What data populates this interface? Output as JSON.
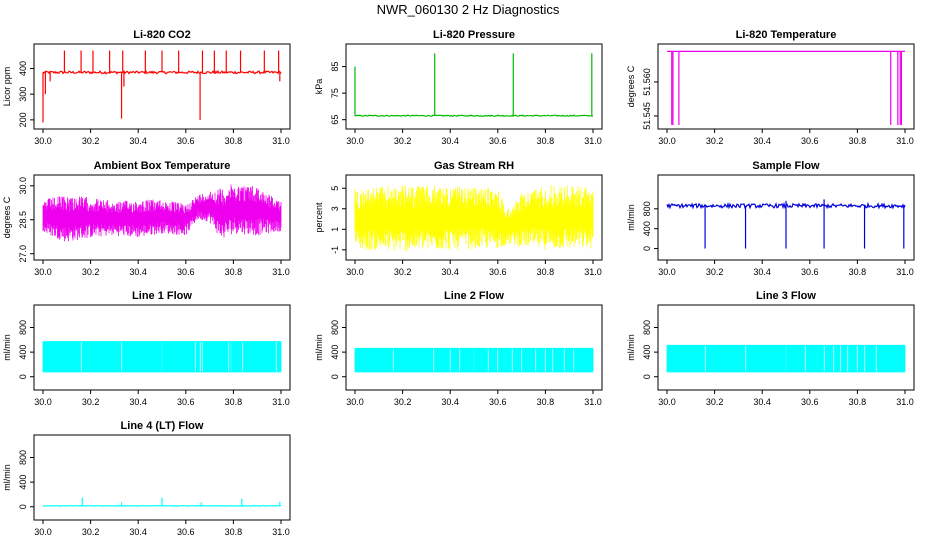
{
  "title": "NWR_060130  2 Hz Diagnostics",
  "chart_data": [
    {
      "type": "line",
      "title": "Li-820 CO2",
      "ylabel": "Licor ppm",
      "color": "#ff0000",
      "xlim": [
        30.0,
        31.0
      ],
      "ylim": [
        180,
        480
      ],
      "xticks": [
        30.0,
        30.2,
        30.4,
        30.6,
        30.8,
        31.0
      ],
      "xtick_labels": [
        "30.0",
        "30.2",
        "30.4",
        "30.6",
        "30.8",
        "31.0"
      ],
      "yticks": [
        200,
        300,
        400
      ],
      "ytick_labels": [
        "200",
        "300",
        "400"
      ],
      "baseline": 385,
      "noise": 5,
      "spikes": [
        {
          "x": 30.0,
          "y": 190
        },
        {
          "x": 30.01,
          "y": 300
        },
        {
          "x": 30.03,
          "y": 350
        },
        {
          "x": 30.09,
          "y": 470
        },
        {
          "x": 30.16,
          "y": 470
        },
        {
          "x": 30.21,
          "y": 470
        },
        {
          "x": 30.28,
          "y": 470
        },
        {
          "x": 30.33,
          "y": 205
        },
        {
          "x": 30.335,
          "y": 470
        },
        {
          "x": 30.34,
          "y": 330
        },
        {
          "x": 30.43,
          "y": 470
        },
        {
          "x": 30.5,
          "y": 470
        },
        {
          "x": 30.57,
          "y": 470
        },
        {
          "x": 30.66,
          "y": 200
        },
        {
          "x": 30.67,
          "y": 470
        },
        {
          "x": 30.72,
          "y": 470
        },
        {
          "x": 30.77,
          "y": 470
        },
        {
          "x": 30.83,
          "y": 470
        },
        {
          "x": 30.93,
          "y": 470
        },
        {
          "x": 30.99,
          "y": 470
        },
        {
          "x": 30.995,
          "y": 350
        }
      ]
    },
    {
      "type": "line",
      "title": "Li-820 Pressure",
      "ylabel": "kPa",
      "color": "#00bb00",
      "xlim": [
        30.0,
        31.0
      ],
      "ylim": [
        63,
        92
      ],
      "xticks": [
        30.0,
        30.2,
        30.4,
        30.6,
        30.8,
        31.0
      ],
      "xtick_labels": [
        "30.0",
        "30.2",
        "30.4",
        "30.6",
        "30.8",
        "31.0"
      ],
      "yticks": [
        65,
        75,
        85
      ],
      "ytick_labels": [
        "65",
        "75",
        "85"
      ],
      "baseline": 66.5,
      "noise": 0.2,
      "spikes": [
        {
          "x": 30.0,
          "y": 85
        },
        {
          "x": 30.335,
          "y": 90
        },
        {
          "x": 30.665,
          "y": 90
        },
        {
          "x": 30.995,
          "y": 90
        }
      ]
    },
    {
      "type": "line",
      "title": "Li-820 Temperature",
      "ylabel": "degrees C",
      "color": "#ee00ee",
      "xlim": [
        30.0,
        31.0
      ],
      "ylim": [
        51.541,
        51.575
      ],
      "xticks": [
        30.0,
        30.2,
        30.4,
        30.6,
        30.8,
        31.0
      ],
      "xtick_labels": [
        "30.0",
        "30.2",
        "30.4",
        "30.6",
        "30.8",
        "31.0"
      ],
      "yticks": [
        51.545,
        51.56
      ],
      "ytick_labels": [
        "51.545",
        "51.560"
      ],
      "baseline": 51.5735,
      "noise": 0,
      "spikes": [
        {
          "x": 30.02,
          "y": 51.541
        },
        {
          "x": 30.025,
          "y": 51.541
        },
        {
          "x": 30.05,
          "y": 51.541
        },
        {
          "x": 30.94,
          "y": 51.541
        },
        {
          "x": 30.97,
          "y": 51.541
        },
        {
          "x": 30.98,
          "y": 51.541
        },
        {
          "x": 30.985,
          "y": 51.541
        }
      ]
    },
    {
      "type": "area",
      "title": "Ambient Box Temperature",
      "ylabel": "degrees C",
      "color": "#ee00ee",
      "xlim": [
        30.0,
        31.0
      ],
      "ylim": [
        26.9,
        30.3
      ],
      "xticks": [
        30.0,
        30.2,
        30.4,
        30.6,
        30.8,
        31.0
      ],
      "xtick_labels": [
        "30.0",
        "30.2",
        "30.4",
        "30.6",
        "30.8",
        "31.0"
      ],
      "yticks": [
        27.0,
        28.5,
        30.0
      ],
      "ytick_labels": [
        "27.0",
        "28.5",
        "30.0"
      ],
      "band": [
        {
          "x": 30.0,
          "lo": 27.9,
          "hi": 29.4
        },
        {
          "x": 30.1,
          "lo": 27.5,
          "hi": 29.6
        },
        {
          "x": 30.2,
          "lo": 27.7,
          "hi": 29.5
        },
        {
          "x": 30.3,
          "lo": 27.8,
          "hi": 29.3
        },
        {
          "x": 30.4,
          "lo": 27.7,
          "hi": 29.4
        },
        {
          "x": 30.5,
          "lo": 27.9,
          "hi": 29.4
        },
        {
          "x": 30.6,
          "lo": 27.8,
          "hi": 29.2
        },
        {
          "x": 30.65,
          "lo": 28.5,
          "hi": 29.6
        },
        {
          "x": 30.7,
          "lo": 28.4,
          "hi": 29.8
        },
        {
          "x": 30.75,
          "lo": 27.6,
          "hi": 29.9
        },
        {
          "x": 30.8,
          "lo": 27.9,
          "hi": 30.1
        },
        {
          "x": 30.9,
          "lo": 27.8,
          "hi": 30.0
        },
        {
          "x": 31.0,
          "lo": 28.0,
          "hi": 29.3
        }
      ]
    },
    {
      "type": "area",
      "title": "Gas Stream RH",
      "ylabel": "percent",
      "color": "#ffff00",
      "xlim": [
        30.0,
        31.0
      ],
      "ylim": [
        -1.6,
        5.9
      ],
      "xticks": [
        30.0,
        30.2,
        30.4,
        30.6,
        30.8,
        31.0
      ],
      "xtick_labels": [
        "30.0",
        "30.2",
        "30.4",
        "30.6",
        "30.8",
        "31.0"
      ],
      "yticks": [
        -1,
        1,
        3,
        5
      ],
      "ytick_labels": [
        "-1",
        "1",
        "3",
        "5"
      ],
      "band": [
        {
          "x": 30.0,
          "lo": -1.0,
          "hi": 5.0
        },
        {
          "x": 30.2,
          "lo": -1.2,
          "hi": 5.3
        },
        {
          "x": 30.4,
          "lo": -1.0,
          "hi": 5.2
        },
        {
          "x": 30.6,
          "lo": -0.9,
          "hi": 5.0
        },
        {
          "x": 30.64,
          "lo": -0.5,
          "hi": 3.0
        },
        {
          "x": 30.7,
          "lo": -0.7,
          "hi": 4.5
        },
        {
          "x": 30.8,
          "lo": -1.0,
          "hi": 5.4
        },
        {
          "x": 31.0,
          "lo": -0.9,
          "hi": 5.2
        }
      ]
    },
    {
      "type": "line",
      "title": "Sample Flow",
      "ylabel": "ml/min",
      "color": "#0000dd",
      "xlim": [
        30.0,
        31.0
      ],
      "ylim": [
        -150,
        1400
      ],
      "xticks": [
        30.0,
        30.2,
        30.4,
        30.6,
        30.8,
        31.0
      ],
      "xtick_labels": [
        "30.0",
        "30.2",
        "30.4",
        "30.6",
        "30.8",
        "31.0"
      ],
      "yticks": [
        0,
        400,
        800
      ],
      "ytick_labels": [
        "0",
        "400",
        "800"
      ],
      "baseline": 860,
      "noise": 40,
      "spikes": [
        {
          "x": 30.16,
          "y": 0
        },
        {
          "x": 30.33,
          "y": 0
        },
        {
          "x": 30.5,
          "y": 0
        },
        {
          "x": 30.66,
          "y": 0
        },
        {
          "x": 30.83,
          "y": 0
        },
        {
          "x": 30.995,
          "y": 0
        },
        {
          "x": 30.66,
          "y": 990
        },
        {
          "x": 30.5,
          "y": 960
        }
      ]
    },
    {
      "type": "area",
      "title": "Line 1 Flow",
      "ylabel": "ml/min",
      "color": "#00ffff",
      "xlim": [
        30.0,
        31.0
      ],
      "ylim": [
        -150,
        1100
      ],
      "xticks": [
        30.0,
        30.2,
        30.4,
        30.6,
        30.8,
        31.0
      ],
      "xtick_labels": [
        "30.0",
        "30.2",
        "30.4",
        "30.6",
        "30.8",
        "31.0"
      ],
      "yticks": [
        0,
        400,
        800
      ],
      "ytick_labels": [
        "0",
        "400",
        "800"
      ],
      "band": [
        {
          "x": 30.0,
          "lo": 80,
          "hi": 570
        },
        {
          "x": 31.0,
          "lo": 80,
          "hi": 570
        }
      ],
      "gaps": [
        30.16,
        30.33,
        30.5,
        30.64,
        30.66,
        30.67,
        30.78,
        30.79,
        30.84,
        30.98
      ]
    },
    {
      "type": "area",
      "title": "Line 2 Flow",
      "ylabel": "ml/min",
      "color": "#00ffff",
      "xlim": [
        30.0,
        31.0
      ],
      "ylim": [
        -150,
        1100
      ],
      "xticks": [
        30.0,
        30.2,
        30.4,
        30.6,
        30.8,
        31.0
      ],
      "xtick_labels": [
        "30.0",
        "30.2",
        "30.4",
        "30.6",
        "30.8",
        "31.0"
      ],
      "yticks": [
        0,
        400,
        800
      ],
      "ytick_labels": [
        "0",
        "400",
        "800"
      ],
      "band": [
        {
          "x": 30.0,
          "lo": 80,
          "hi": 460
        },
        {
          "x": 31.0,
          "lo": 80,
          "hi": 460
        }
      ],
      "gaps": [
        30.16,
        30.33,
        30.4,
        30.44,
        30.5,
        30.56,
        30.6,
        30.66,
        30.7,
        30.76,
        30.8,
        30.83,
        30.88,
        30.92
      ]
    },
    {
      "type": "area",
      "title": "Line 3 Flow",
      "ylabel": "ml/min",
      "color": "#00ffff",
      "xlim": [
        30.0,
        31.0
      ],
      "ylim": [
        -150,
        1100
      ],
      "xticks": [
        30.0,
        30.2,
        30.4,
        30.6,
        30.8,
        31.0
      ],
      "xtick_labels": [
        "30.0",
        "30.2",
        "30.4",
        "30.6",
        "30.8",
        "31.0"
      ],
      "yticks": [
        0,
        400,
        800
      ],
      "ytick_labels": [
        "0",
        "400",
        "800"
      ],
      "band": [
        {
          "x": 30.0,
          "lo": 80,
          "hi": 510
        },
        {
          "x": 31.0,
          "lo": 80,
          "hi": 510
        }
      ],
      "gaps": [
        30.16,
        30.33,
        30.5,
        30.58,
        30.66,
        30.7,
        30.73,
        30.76,
        30.8,
        30.83,
        30.88
      ]
    },
    {
      "type": "line",
      "title": "Line 4 (LT) Flow",
      "ylabel": "ml/min",
      "color": "#00ffff",
      "xlim": [
        30.0,
        31.0
      ],
      "ylim": [
        -150,
        1100
      ],
      "xticks": [
        30.0,
        30.2,
        30.4,
        30.6,
        30.8,
        31.0
      ],
      "xtick_labels": [
        "30.0",
        "30.2",
        "30.4",
        "30.6",
        "30.8",
        "31.0"
      ],
      "yticks": [
        0,
        400,
        800
      ],
      "ytick_labels": [
        "0",
        "400",
        "800"
      ],
      "baseline": 15,
      "noise": 5,
      "spikes": [
        {
          "x": 30.165,
          "y": 150
        },
        {
          "x": 30.33,
          "y": 70
        },
        {
          "x": 30.5,
          "y": 150
        },
        {
          "x": 30.665,
          "y": 70
        },
        {
          "x": 30.835,
          "y": 130
        },
        {
          "x": 30.995,
          "y": 80
        }
      ]
    }
  ]
}
